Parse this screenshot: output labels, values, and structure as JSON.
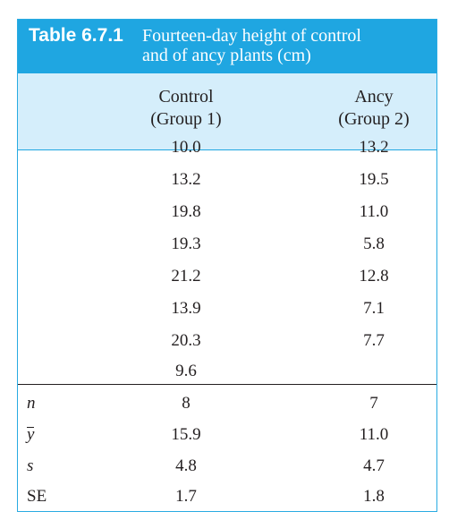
{
  "table": {
    "number": "Table 6.7.1",
    "caption_line1": "Fourteen-day height of control",
    "caption_line2": "and of ancy plants (cm)",
    "columns": [
      {
        "line1": "Control",
        "line2": "(Group 1)"
      },
      {
        "line1": "Ancy",
        "line2": "(Group 2)"
      }
    ],
    "data_rows": [
      {
        "control": "10.0",
        "ancy": "13.2"
      },
      {
        "control": "13.2",
        "ancy": "19.5"
      },
      {
        "control": "19.8",
        "ancy": "11.0"
      },
      {
        "control": "19.3",
        "ancy": "5.8"
      },
      {
        "control": "21.2",
        "ancy": "12.8"
      },
      {
        "control": "13.9",
        "ancy": "7.1"
      },
      {
        "control": "20.3",
        "ancy": "7.7"
      },
      {
        "control": "9.6",
        "ancy": ""
      }
    ],
    "summary_rows": [
      {
        "label": "n",
        "control": "8",
        "ancy": "7"
      },
      {
        "label": "y",
        "control": "15.9",
        "ancy": "11.0"
      },
      {
        "label": "s",
        "control": "4.8",
        "ancy": "4.7"
      },
      {
        "label": "SE",
        "control": "1.7",
        "ancy": "1.8"
      }
    ]
  },
  "colors": {
    "accent": "#1fa6e1",
    "header_band": "#d5eefb"
  }
}
